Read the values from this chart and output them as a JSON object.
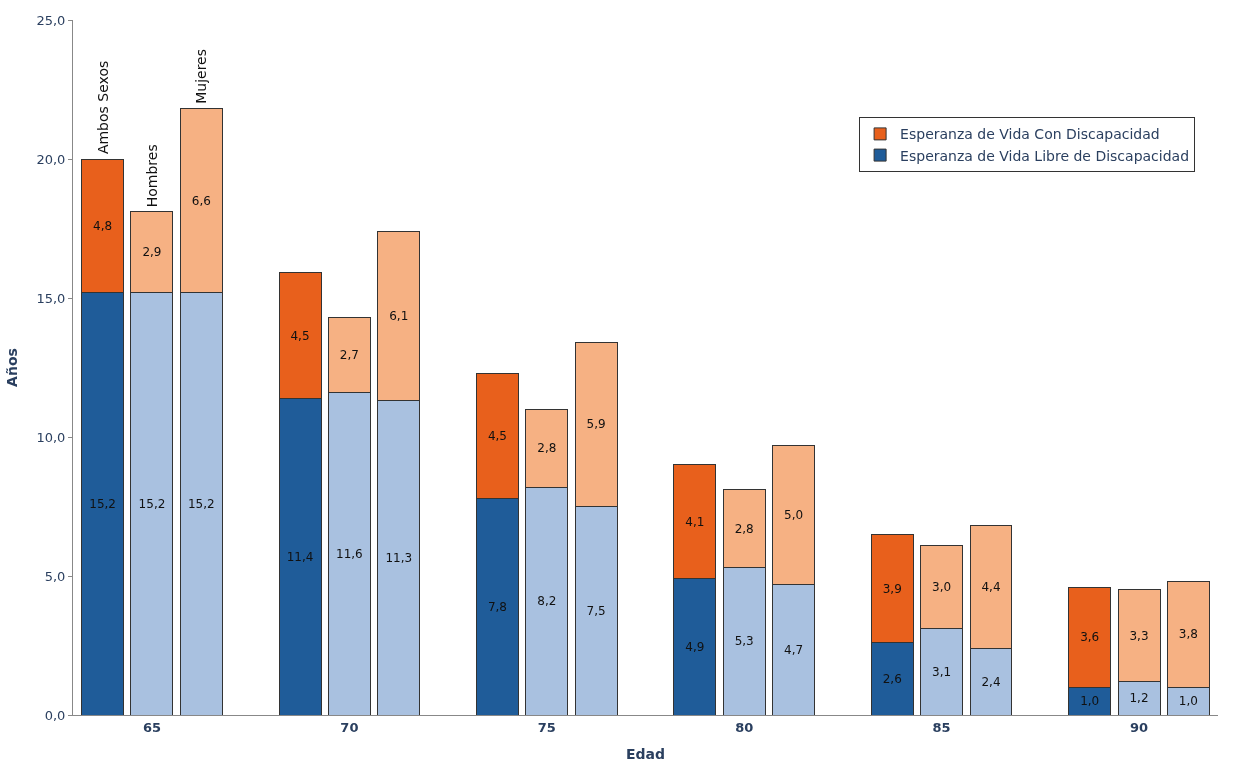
{
  "chart_data": {
    "type": "bar",
    "stacked": true,
    "xlabel": "Edad",
    "ylabel": "Años",
    "categories": [
      null,
      "65",
      null,
      null,
      null,
      "70",
      null,
      null,
      null,
      "75",
      null,
      null,
      null,
      "80",
      null,
      null,
      null,
      "85",
      null,
      null,
      null,
      "90",
      null
    ],
    "series": [
      {
        "name": "Esperanza de Vida Libre de Discapacidad",
        "colors": [
          "#1f5c99",
          "#a9c1e0",
          "#a9c1e0",
          null,
          "#1f5c99",
          "#a9c1e0",
          "#a9c1e0",
          null,
          "#1f5c99",
          "#a9c1e0",
          "#a9c1e0",
          null,
          "#1f5c99",
          "#a9c1e0",
          "#a9c1e0",
          null,
          "#1f5c99",
          "#a9c1e0",
          "#a9c1e0",
          null,
          "#1f5c99",
          "#a9c1e0",
          "#a9c1e0"
        ],
        "values": [
          15.2,
          15.2,
          15.2,
          null,
          11.4,
          11.6,
          11.3,
          null,
          7.8,
          8.2,
          7.5,
          null,
          4.9,
          5.3,
          4.7,
          null,
          2.6,
          3.1,
          2.4,
          null,
          1.0,
          1.2,
          1.0
        ],
        "value_labels": [
          "15,2",
          "15,2",
          "15,2",
          null,
          "11,4",
          "11,6",
          "11,3",
          null,
          "7,8",
          "8,2",
          "7,5",
          null,
          "4,9",
          "5,3",
          "4,7",
          null,
          "2,6",
          "3,1",
          "2,4",
          null,
          "1,0",
          "1,2",
          "1,0"
        ]
      },
      {
        "name": "Esperanza de Vida Con Discapacidad",
        "colors": [
          "#e8601c",
          "#f6b183",
          "#f6b183",
          null,
          "#e8601c",
          "#f6b183",
          "#f6b183",
          null,
          "#e8601c",
          "#f6b183",
          "#f6b183",
          null,
          "#e8601c",
          "#f6b183",
          "#f6b183",
          null,
          "#e8601c",
          "#f6b183",
          "#f6b183",
          null,
          "#e8601c",
          "#f6b183",
          "#f6b183"
        ],
        "values": [
          4.8,
          2.9,
          6.6,
          null,
          4.5,
          2.7,
          6.1,
          null,
          4.5,
          2.8,
          5.9,
          null,
          4.1,
          2.8,
          5.0,
          null,
          3.9,
          3.0,
          4.4,
          null,
          3.6,
          3.3,
          3.8
        ],
        "value_labels": [
          "4,8",
          "2,9",
          "6,6",
          null,
          "4,5",
          "2,7",
          "6,1",
          null,
          "4,5",
          "2,8",
          "5,9",
          null,
          "4,1",
          "2,8",
          "5,0",
          null,
          "3,9",
          "3,0",
          "4,4",
          null,
          "3,6",
          "3,3",
          "3,8"
        ]
      }
    ],
    "annotations": [
      "Ambos Sexos",
      "Hombres",
      "Mujeres"
    ],
    "ylim": [
      0,
      25
    ],
    "yticks": [
      {
        "value": 0,
        "label": "0,0"
      },
      {
        "value": 5,
        "label": "5,0"
      },
      {
        "value": 10,
        "label": "10,0"
      },
      {
        "value": 15,
        "label": "15,0"
      },
      {
        "value": 20,
        "label": "20,0"
      },
      {
        "value": 25,
        "label": "25,0"
      }
    ],
    "legend": "top right"
  }
}
